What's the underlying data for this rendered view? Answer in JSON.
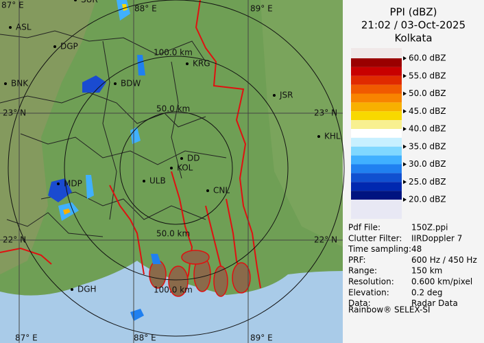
{
  "header": {
    "title": "PPI (dBZ)",
    "timestamp": "21:02 / 03-Oct-2025",
    "station": "Kolkata"
  },
  "legend": {
    "ticks": [
      {
        "value": 60,
        "label": "60.0 dBZ"
      },
      {
        "value": 55,
        "label": "55.0 dBZ"
      },
      {
        "value": 50,
        "label": "50.0 dBZ"
      },
      {
        "value": 45,
        "label": "45.0 dBZ"
      },
      {
        "value": 40,
        "label": "40.0 dBZ"
      },
      {
        "value": 35,
        "label": "35.0 dBZ"
      },
      {
        "value": 30,
        "label": "30.0 dBZ"
      },
      {
        "value": 25,
        "label": "25.0 dBZ"
      },
      {
        "value": 20,
        "label": "20.0 dBZ"
      }
    ],
    "colors": [
      "#9a0000",
      "#c80000",
      "#e02a00",
      "#f05a00",
      "#f88400",
      "#f8b000",
      "#f8d800",
      "#f8f090",
      "#ffffff",
      "#c8f0ff",
      "#80d8ff",
      "#40b0ff",
      "#2080f0",
      "#1050d0",
      "#0028b0",
      "#001480"
    ]
  },
  "info": {
    "rows": [
      [
        "Pdf File:",
        "150Z.ppi"
      ],
      [
        "Clutter Filter:",
        "IIRDoppler 7"
      ],
      [
        "Time sampling:",
        "48"
      ],
      [
        "PRF:",
        "600 Hz / 450 Hz"
      ],
      [
        "Range:",
        "150 km"
      ],
      [
        "Resolution:",
        "0.600 km/pixel"
      ],
      [
        "Elevation:",
        "0.2 deg"
      ],
      [
        "Data:",
        "Radar Data"
      ]
    ],
    "footer": "Rainbow® SELEX-SI"
  },
  "map": {
    "grid_labels": [
      "87° E",
      "88° E",
      "89° E",
      "23° N",
      "23° N",
      "22° N",
      "22° N",
      "87° E",
      "88° E",
      "89° E"
    ],
    "ring_labels": [
      "100.0 km",
      "50.0 km",
      "50.0 km",
      "100.0 km"
    ],
    "places": [
      "SUR",
      "ASL",
      "DGP",
      "BNK",
      "BDW",
      "KRG",
      "JSR",
      "KHL",
      "DD",
      "KOL",
      "ULB",
      "CNL",
      "MDP",
      "DGH"
    ]
  }
}
